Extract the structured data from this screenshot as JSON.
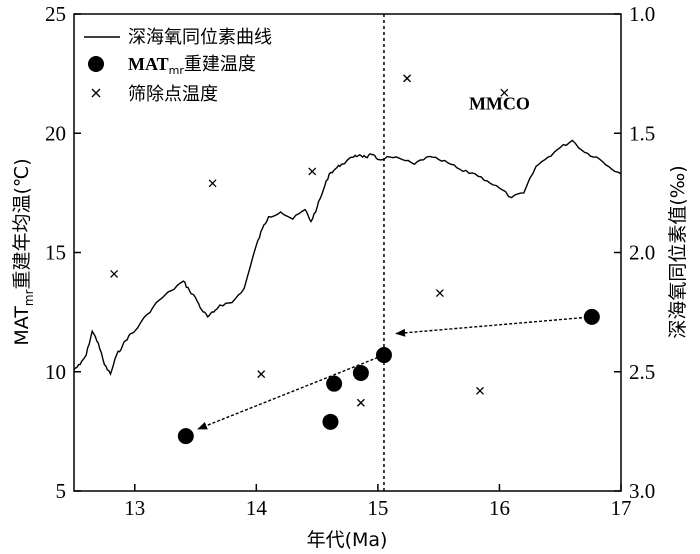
{
  "chart_data": {
    "type": "line+scatter",
    "x_axis": {
      "label": "年代(Ma)",
      "range": [
        12.5,
        17
      ],
      "ticks": [
        13,
        14,
        15,
        16,
        17
      ]
    },
    "y_left": {
      "label_prefix": "MAT",
      "label_sub": "mr",
      "label_suffix": "重建年均温(℃)",
      "range": [
        5,
        25
      ],
      "ticks": [
        5,
        10,
        15,
        20,
        25
      ]
    },
    "y_right": {
      "label": "深海氧同位素值(‰)",
      "range": [
        1.0,
        3.0
      ],
      "inverted": true,
      "ticks": [
        "1.0",
        "1.5",
        "2.0",
        "2.5",
        "3.0"
      ],
      "tick_values": [
        1.0,
        1.5,
        2.0,
        2.5,
        3.0
      ]
    },
    "legend": {
      "position": "top-left",
      "items": [
        {
          "marker": "line",
          "text": "深海氧同位素曲线"
        },
        {
          "marker": "circle",
          "text_main": "MAT",
          "text_sub": "mr",
          "text_rest": "重建温度"
        },
        {
          "marker": "cross",
          "text": "筛除点温度"
        }
      ]
    },
    "annotation": {
      "text": "MMCO",
      "x": 16.0,
      "y": 21.0
    },
    "vline": {
      "x": 15.05,
      "style": "dashed"
    },
    "series": [
      {
        "name": "深海氧同位素曲线",
        "type": "line",
        "axis": "right",
        "x": [
          12.5,
          12.55,
          12.6,
          12.65,
          12.7,
          12.75,
          12.8,
          12.85,
          12.9,
          12.95,
          13.0,
          13.1,
          13.2,
          13.3,
          13.4,
          13.45,
          13.5,
          13.55,
          13.6,
          13.65,
          13.7,
          13.8,
          13.9,
          14.0,
          14.05,
          14.1,
          14.2,
          14.3,
          14.4,
          14.45,
          14.5,
          14.55,
          14.6,
          14.65,
          14.7,
          14.8,
          14.85,
          14.9,
          14.95,
          15.0,
          15.1,
          15.2,
          15.3,
          15.4,
          15.5,
          15.6,
          15.7,
          15.8,
          15.9,
          16.0,
          16.1,
          16.2,
          16.3,
          16.4,
          16.5,
          16.6,
          16.7,
          16.8,
          16.9,
          17.0
        ],
        "values": [
          2.49,
          2.47,
          2.43,
          2.33,
          2.38,
          2.47,
          2.51,
          2.43,
          2.39,
          2.35,
          2.33,
          2.26,
          2.2,
          2.16,
          2.12,
          2.16,
          2.19,
          2.24,
          2.27,
          2.25,
          2.22,
          2.21,
          2.15,
          1.97,
          1.9,
          1.85,
          1.83,
          1.86,
          1.82,
          1.87,
          1.81,
          1.74,
          1.67,
          1.65,
          1.63,
          1.6,
          1.59,
          1.6,
          1.59,
          1.61,
          1.6,
          1.61,
          1.63,
          1.6,
          1.61,
          1.63,
          1.66,
          1.67,
          1.7,
          1.73,
          1.77,
          1.75,
          1.64,
          1.6,
          1.56,
          1.53,
          1.58,
          1.6,
          1.64,
          1.67
        ]
      },
      {
        "name": "MATmr重建温度",
        "type": "scatter",
        "marker": "circle",
        "axis": "left",
        "points": [
          [
            13.42,
            7.3
          ],
          [
            14.61,
            7.9
          ],
          [
            14.64,
            9.5
          ],
          [
            14.86,
            9.95
          ],
          [
            15.05,
            10.7
          ],
          [
            16.76,
            12.3
          ]
        ]
      },
      {
        "name": "筛除点温度",
        "type": "scatter",
        "marker": "cross",
        "axis": "left",
        "points": [
          [
            12.83,
            14.1
          ],
          [
            13.64,
            17.9
          ],
          [
            14.04,
            9.9
          ],
          [
            14.46,
            18.4
          ],
          [
            14.86,
            8.7
          ],
          [
            15.24,
            22.3
          ],
          [
            15.51,
            13.3
          ],
          [
            15.84,
            9.2
          ],
          [
            16.04,
            21.7
          ]
        ]
      }
    ],
    "arrows": [
      {
        "from": [
          16.76,
          12.3
        ],
        "to": [
          15.15,
          11.6
        ]
      },
      {
        "from": [
          15.0,
          10.6
        ],
        "to": [
          13.52,
          7.6
        ]
      }
    ]
  }
}
